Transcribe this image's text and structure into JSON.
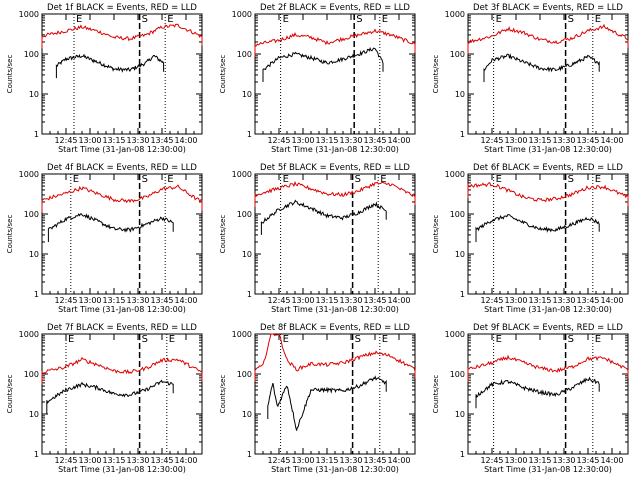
{
  "figure": {
    "background": "#ffffff",
    "axis_color": "#000000",
    "events_color": "#000000",
    "lld_color": "#dd0000"
  },
  "chart_data": [
    {
      "type": "line",
      "title": "Det 1f BLACK = Events, RED = LLD",
      "xlabel": "Start Time (31-Jan-08 12:30:00)",
      "ylabel": "Counts/sec",
      "x_ticklabels": [
        "12:45",
        "13:00",
        "13:15",
        "13:30",
        "13:45",
        "14:00"
      ],
      "y_ticklabels": [
        "1",
        "10",
        "100",
        "1000"
      ],
      "yscale": "log",
      "xlim": [
        "12:30",
        "14:10"
      ],
      "ylim": [
        1,
        1000
      ],
      "markers": [
        {
          "style": "dotted",
          "x": "12:50",
          "label": "E"
        },
        {
          "style": "dashed",
          "x": "13:31",
          "label": "S"
        },
        {
          "style": "dotted",
          "x": "13:47",
          "label": "E"
        }
      ],
      "series": [
        {
          "name": "Events",
          "color": "#000000",
          "x": [
            "12:39",
            "12:45",
            "12:55",
            "13:05",
            "13:15",
            "13:25",
            "13:35",
            "13:40",
            "13:46"
          ],
          "y": [
            50,
            75,
            90,
            62,
            42,
            40,
            60,
            90,
            60
          ]
        },
        {
          "name": "LLD",
          "color": "#dd0000",
          "x": [
            "12:30",
            "12:45",
            "12:55",
            "13:05",
            "13:15",
            "13:25",
            "13:35",
            "13:45",
            "13:55",
            "14:05",
            "14:10"
          ],
          "y": [
            280,
            380,
            470,
            370,
            260,
            240,
            300,
            470,
            520,
            340,
            270
          ]
        }
      ]
    },
    {
      "type": "line",
      "title": "Det 2f BLACK = Events, RED = LLD",
      "xlabel": "Start Time (31-Jan-08 12:30:00)",
      "ylabel": "Counts/sec",
      "x_ticklabels": [
        "12:45",
        "13:00",
        "13:15",
        "13:30",
        "13:45",
        "14:00"
      ],
      "y_ticklabels": [
        "1",
        "10",
        "100",
        "1000"
      ],
      "yscale": "log",
      "xlim": [
        "12:30",
        "14:10"
      ],
      "ylim": [
        1,
        1000
      ],
      "markers": [
        {
          "style": "dotted",
          "x": "12:46",
          "label": "E"
        },
        {
          "style": "dashed",
          "x": "13:32",
          "label": "S"
        },
        {
          "style": "dotted",
          "x": "13:48",
          "label": "E"
        }
      ],
      "series": [
        {
          "name": "Events",
          "color": "#000000",
          "x": [
            "12:35",
            "12:45",
            "12:55",
            "13:05",
            "13:15",
            "13:25",
            "13:35",
            "13:45",
            "13:50"
          ],
          "y": [
            40,
            80,
            100,
            80,
            60,
            75,
            100,
            140,
            60
          ]
        },
        {
          "name": "LLD",
          "color": "#dd0000",
          "x": [
            "12:30",
            "12:45",
            "12:55",
            "13:05",
            "13:15",
            "13:25",
            "13:35",
            "13:45",
            "13:55",
            "14:05",
            "14:10"
          ],
          "y": [
            170,
            220,
            300,
            260,
            190,
            240,
            300,
            380,
            300,
            210,
            180
          ]
        }
      ]
    },
    {
      "type": "line",
      "title": "Det 3f BLACK = Events, RED = LLD",
      "xlabel": "Start Time (31-Jan-08 12:30:00)",
      "ylabel": "Counts/sec",
      "x_ticklabels": [
        "12:45",
        "13:00",
        "13:15",
        "13:30",
        "13:45",
        "14:00"
      ],
      "y_ticklabels": [
        "1",
        "10",
        "100",
        "1000"
      ],
      "yscale": "log",
      "xlim": [
        "12:30",
        "14:10"
      ],
      "ylim": [
        1,
        1000
      ],
      "markers": [
        {
          "style": "dotted",
          "x": "12:46",
          "label": "E"
        },
        {
          "style": "dashed",
          "x": "13:31",
          "label": "S"
        },
        {
          "style": "dotted",
          "x": "13:48",
          "label": "E"
        }
      ],
      "series": [
        {
          "name": "Events",
          "color": "#000000",
          "x": [
            "12:40",
            "12:45",
            "12:55",
            "13:05",
            "13:15",
            "13:25",
            "13:35",
            "13:45",
            "13:52"
          ],
          "y": [
            40,
            70,
            90,
            62,
            44,
            40,
            55,
            85,
            60
          ]
        },
        {
          "name": "LLD",
          "color": "#dd0000",
          "x": [
            "12:30",
            "12:45",
            "12:55",
            "13:05",
            "13:15",
            "13:25",
            "13:35",
            "13:45",
            "13:55",
            "14:05",
            "14:10"
          ],
          "y": [
            200,
            280,
            430,
            340,
            230,
            200,
            250,
            380,
            480,
            300,
            240
          ]
        }
      ]
    },
    {
      "type": "line",
      "title": "Det 4f BLACK = Events, RED = LLD",
      "xlabel": "Start Time (31-Jan-08 12:30:00)",
      "ylabel": "Counts/sec",
      "x_ticklabels": [
        "12:45",
        "13:00",
        "13:15",
        "13:30",
        "13:45",
        "14:00"
      ],
      "y_ticklabels": [
        "1",
        "10",
        "100",
        "1000"
      ],
      "yscale": "log",
      "xlim": [
        "12:30",
        "14:10"
      ],
      "ylim": [
        1,
        1000
      ],
      "markers": [
        {
          "style": "dotted",
          "x": "12:48",
          "label": "E"
        },
        {
          "style": "dashed",
          "x": "13:31",
          "label": "S"
        },
        {
          "style": "dotted",
          "x": "13:47",
          "label": "E"
        }
      ],
      "series": [
        {
          "name": "Events",
          "color": "#000000",
          "x": [
            "12:34",
            "12:45",
            "12:55",
            "13:05",
            "13:15",
            "13:25",
            "13:35",
            "13:45",
            "13:52"
          ],
          "y": [
            40,
            75,
            100,
            65,
            42,
            40,
            55,
            80,
            60
          ]
        },
        {
          "name": "LLD",
          "color": "#dd0000",
          "x": [
            "12:30",
            "12:45",
            "12:55",
            "13:05",
            "13:15",
            "13:25",
            "13:35",
            "13:45",
            "13:55",
            "14:05",
            "14:10"
          ],
          "y": [
            220,
            330,
            450,
            320,
            230,
            210,
            260,
            420,
            480,
            260,
            200
          ]
        }
      ]
    },
    {
      "type": "line",
      "title": "Det 5f BLACK = Events, RED = LLD",
      "xlabel": "Start Time (31-Jan-08 12:30:00)",
      "ylabel": "Counts/sec",
      "x_ticklabels": [
        "12:45",
        "13:00",
        "13:15",
        "13:30",
        "13:45",
        "14:00"
      ],
      "y_ticklabels": [
        "1",
        "10",
        "100",
        "1000"
      ],
      "yscale": "log",
      "xlim": [
        "12:30",
        "14:10"
      ],
      "ylim": [
        1,
        1000
      ],
      "markers": [
        {
          "style": "dotted",
          "x": "12:46",
          "label": "E"
        },
        {
          "style": "dashed",
          "x": "13:31",
          "label": "S"
        },
        {
          "style": "dotted",
          "x": "13:47",
          "label": "E"
        }
      ],
      "series": [
        {
          "name": "Events",
          "color": "#000000",
          "x": [
            "12:34",
            "12:45",
            "12:55",
            "13:05",
            "13:15",
            "13:25",
            "13:35",
            "13:45",
            "13:52"
          ],
          "y": [
            60,
            130,
            200,
            140,
            90,
            80,
            110,
            180,
            120
          ]
        },
        {
          "name": "LLD",
          "color": "#dd0000",
          "x": [
            "12:30",
            "12:45",
            "12:55",
            "13:05",
            "13:15",
            "13:25",
            "13:35",
            "13:45",
            "13:55",
            "14:05",
            "14:10"
          ],
          "y": [
            300,
            440,
            560,
            430,
            320,
            300,
            380,
            580,
            560,
            340,
            280
          ]
        }
      ]
    },
    {
      "type": "line",
      "title": "Det 6f BLACK = Events, RED = LLD",
      "xlabel": "Start Time (31-Jan-08 12:30:00)",
      "ylabel": "Counts/sec",
      "x_ticklabels": [
        "12:45",
        "13:00",
        "13:15",
        "13:30",
        "13:45",
        "14:00"
      ],
      "y_ticklabels": [
        "1",
        "10",
        "100",
        "1000"
      ],
      "yscale": "log",
      "xlim": [
        "12:30",
        "14:10"
      ],
      "ylim": [
        1,
        1000
      ],
      "markers": [
        {
          "style": "dotted",
          "x": "12:46",
          "label": "E"
        },
        {
          "style": "dashed",
          "x": "13:31",
          "label": "S"
        },
        {
          "style": "dotted",
          "x": "13:48",
          "label": "E"
        }
      ],
      "series": [
        {
          "name": "Events",
          "color": "#000000",
          "x": [
            "12:35",
            "12:45",
            "12:55",
            "13:05",
            "13:15",
            "13:25",
            "13:35",
            "13:45",
            "13:52"
          ],
          "y": [
            40,
            70,
            90,
            60,
            42,
            40,
            55,
            80,
            60
          ]
        },
        {
          "name": "LLD",
          "color": "#dd0000",
          "x": [
            "12:30",
            "12:45",
            "12:55",
            "13:05",
            "13:15",
            "13:25",
            "13:35",
            "13:45",
            "13:55",
            "14:05",
            "14:10"
          ],
          "y": [
            500,
            560,
            390,
            260,
            220,
            240,
            310,
            460,
            480,
            320,
            260
          ]
        }
      ]
    },
    {
      "type": "line",
      "title": "Det 7f BLACK = Events, RED = LLD",
      "xlabel": "Start Time (31-Jan-08 12:30:00)",
      "ylabel": "Counts/sec",
      "x_ticklabels": [
        "12:45",
        "13:00",
        "13:15",
        "13:30",
        "13:45",
        "14:00"
      ],
      "y_ticklabels": [
        "1",
        "10",
        "100",
        "1000"
      ],
      "yscale": "log",
      "xlim": [
        "12:30",
        "14:10"
      ],
      "ylim": [
        1,
        1000
      ],
      "markers": [
        {
          "style": "dotted",
          "x": "12:45",
          "label": "E"
        },
        {
          "style": "dashed",
          "x": "13:31",
          "label": "S"
        },
        {
          "style": "dotted",
          "x": "13:48",
          "label": "E"
        }
      ],
      "series": [
        {
          "name": "Events",
          "color": "#000000",
          "x": [
            "12:33",
            "12:45",
            "12:55",
            "13:05",
            "13:15",
            "13:25",
            "13:35",
            "13:45",
            "13:52"
          ],
          "y": [
            20,
            40,
            55,
            45,
            32,
            30,
            40,
            65,
            55
          ]
        },
        {
          "name": "LLD",
          "color": "#dd0000",
          "x": [
            "12:30",
            "12:45",
            "12:55",
            "13:05",
            "13:15",
            "13:25",
            "13:35",
            "13:45",
            "13:55",
            "14:05",
            "14:10"
          ],
          "y": [
            110,
            150,
            230,
            170,
            120,
            110,
            140,
            220,
            230,
            140,
            110
          ]
        }
      ]
    },
    {
      "type": "line",
      "title": "Det 8f BLACK = Events, RED = LLD",
      "xlabel": "Start Time (31-Jan-08 12:30:00)",
      "ylabel": "Counts/sec",
      "x_ticklabels": [
        "12:45",
        "13:00",
        "13:15",
        "13:30",
        "13:45",
        "14:00"
      ],
      "y_ticklabels": [
        "1",
        "10",
        "100",
        "1000"
      ],
      "yscale": "log",
      "xlim": [
        "12:30",
        "14:10"
      ],
      "ylim": [
        1,
        1000
      ],
      "markers": [
        {
          "style": "dotted",
          "x": "12:46",
          "label": "E"
        },
        {
          "style": "dashed",
          "x": "13:31",
          "label": "S"
        },
        {
          "style": "dotted",
          "x": "13:48",
          "label": "E"
        }
      ],
      "series": [
        {
          "name": "Events",
          "color": "#000000",
          "x": [
            "12:38",
            "12:41",
            "12:44",
            "12:50",
            "12:56",
            "13:05",
            "13:15",
            "13:25",
            "13:35",
            "13:45",
            "13:52"
          ],
          "y": [
            15,
            60,
            15,
            55,
            4,
            40,
            40,
            38,
            50,
            80,
            60
          ]
        },
        {
          "name": "LLD",
          "color": "#dd0000",
          "x": [
            "12:30",
            "12:35",
            "12:40",
            "12:45",
            "12:50",
            "12:56",
            "13:05",
            "13:15",
            "13:25",
            "13:35",
            "13:45",
            "13:55",
            "14:05",
            "14:10"
          ],
          "y": [
            130,
            160,
            1000,
            1000,
            220,
            130,
            180,
            170,
            190,
            260,
            340,
            280,
            170,
            130
          ]
        }
      ]
    },
    {
      "type": "line",
      "title": "Det 9f BLACK = Events, RED = LLD",
      "xlabel": "Start Time (31-Jan-08 12:30:00)",
      "ylabel": "Counts/sec",
      "x_ticklabels": [
        "12:45",
        "13:00",
        "13:15",
        "13:30",
        "13:45",
        "14:00"
      ],
      "y_ticklabels": [
        "1",
        "10",
        "100",
        "1000"
      ],
      "yscale": "log",
      "xlim": [
        "12:30",
        "14:10"
      ],
      "ylim": [
        1,
        1000
      ],
      "markers": [
        {
          "style": "dotted",
          "x": "12:46",
          "label": "E"
        },
        {
          "style": "dashed",
          "x": "13:31",
          "label": "S"
        },
        {
          "style": "dotted",
          "x": "13:48",
          "label": "E"
        }
      ],
      "series": [
        {
          "name": "Events",
          "color": "#000000",
          "x": [
            "12:35",
            "12:45",
            "12:55",
            "13:05",
            "13:15",
            "13:25",
            "13:35",
            "13:45",
            "13:52"
          ],
          "y": [
            28,
            55,
            65,
            45,
            35,
            30,
            45,
            75,
            60
          ]
        },
        {
          "name": "LLD",
          "color": "#dd0000",
          "x": [
            "12:30",
            "12:45",
            "12:55",
            "13:05",
            "13:15",
            "13:25",
            "13:35",
            "13:45",
            "13:55",
            "14:05",
            "14:10"
          ],
          "y": [
            130,
            190,
            260,
            190,
            140,
            120,
            150,
            240,
            250,
            160,
            130
          ]
        }
      ]
    }
  ]
}
